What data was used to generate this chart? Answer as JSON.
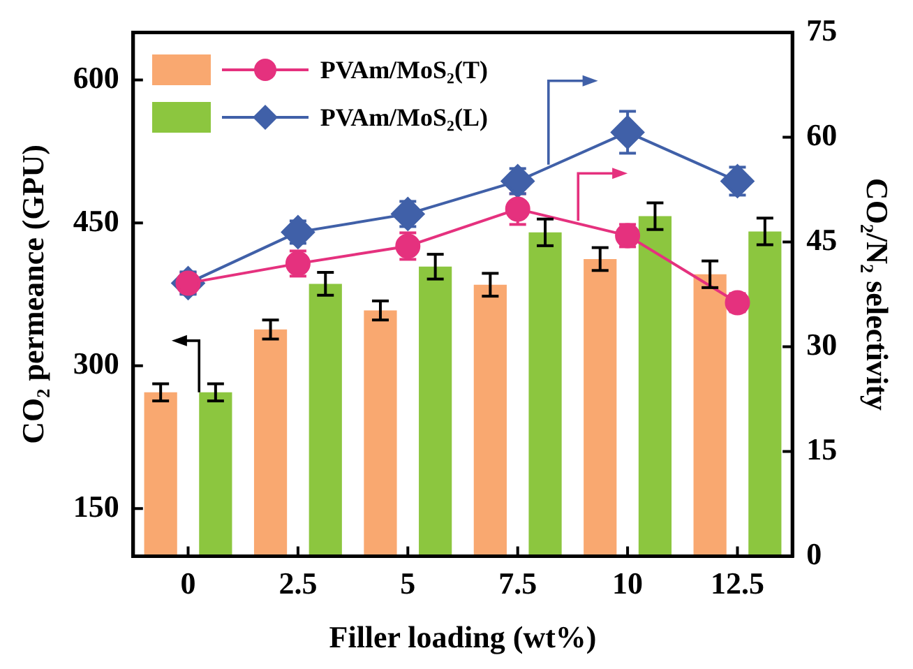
{
  "chart_data": {
    "type": "bar",
    "xlabel": "Filler loading (wt%)",
    "ylabel": "CO₂ permeance (GPU)",
    "y2label": "CO₂/N₂ selectivity",
    "categories": [
      "0",
      "2.5",
      "5",
      "7.5",
      "10",
      "12.5"
    ],
    "series": [
      {
        "name": "PVAm/MoS₂(T)",
        "type": "line",
        "axis": "y2",
        "color": "#e5317e",
        "marker": "circle",
        "values": [
          39.1,
          41.9,
          44.4,
          49.7,
          45.9,
          36.3
        ],
        "errors": [
          1.5,
          1.8,
          1.9,
          2.2,
          1.6,
          1.3
        ]
      },
      {
        "name": "PVAm/MoS₂(L)",
        "type": "line",
        "axis": "y2",
        "color": "#4060a8",
        "marker": "diamond",
        "values": [
          39.1,
          46.4,
          49.0,
          53.7,
          60.7,
          53.7
        ],
        "errors": [
          1.6,
          1.6,
          1.8,
          1.8,
          3.0,
          2.0
        ]
      },
      {
        "color": "#f9a870",
        "values": [
          272,
          338,
          358,
          385,
          412,
          396
        ],
        "errors": [
          9,
          10,
          10,
          12,
          12,
          14
        ]
      },
      {
        "color": "#8cc63f",
        "values": [
          272,
          386,
          404,
          440,
          457,
          441
        ],
        "errors": [
          9,
          12,
          13,
          14,
          14,
          14
        ]
      }
    ],
    "ylim": [
      100,
      650
    ],
    "yticks": [
      150,
      300,
      450,
      600
    ],
    "y2lim": [
      0,
      75
    ],
    "y2ticks": [
      0,
      15,
      30,
      45,
      60,
      75
    ],
    "grid": false,
    "legend": "top left"
  }
}
